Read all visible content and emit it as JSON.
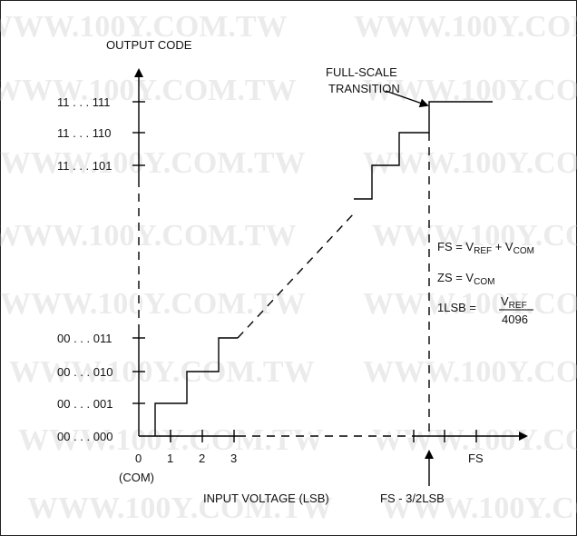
{
  "watermark": "WWW.100Y.COM.TW",
  "axes": {
    "y_title": "OUTPUT CODE",
    "x_title": "INPUT VOLTAGE (LSB)",
    "y_ticks": [
      "11 . . . 111",
      "11 . . . 110",
      "11 . . . 101",
      "00 . . . 011",
      "00 . . . 010",
      "00 . . . 001",
      "00 . . . 000"
    ],
    "x_ticks": [
      "0",
      "1",
      "2",
      "3",
      "FS"
    ],
    "x_origin_sub": "(COM)"
  },
  "annotations": {
    "fullscale_line1": "FULL-SCALE",
    "fullscale_line2": "TRANSITION",
    "fs_minus": "FS - 3/2LSB"
  },
  "equations": {
    "fs_prefix": "FS = V",
    "fs_sub1": "REF",
    "fs_mid": " + V",
    "fs_sub2": "COM",
    "zs_prefix": "ZS = V",
    "zs_sub": "COM",
    "lsb_prefix": "1LSB = ",
    "lsb_num_v": "V",
    "lsb_num_sub": "REF",
    "lsb_den": "4096"
  }
}
